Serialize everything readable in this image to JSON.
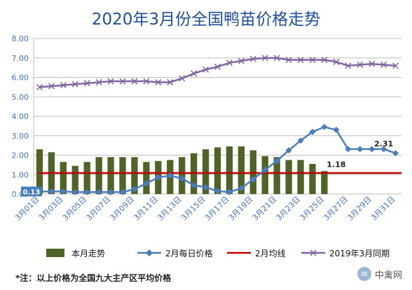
{
  "title": "2020年3月份全国鸭苗价格走势",
  "footnote": "*注：以上价格为全国九大主产区平均价格",
  "watermark": {
    "text": "中禽网",
    "icon": "wechat-icon"
  },
  "colors": {
    "bars": "#4f6228",
    "daily": "#4a7ebb",
    "avg": "#c00000",
    "last_year": "#8064a2",
    "axis_text": "#4472c4",
    "grid": "#bfbfbf"
  },
  "legend": [
    {
      "label": "本月走势",
      "symbol": "bar",
      "color": "#4f6228"
    },
    {
      "label": "2月每日价格",
      "symbol": "line-diamond",
      "color": "#4a7ebb"
    },
    {
      "label": "2月均线",
      "symbol": "line",
      "color": "#c00000"
    },
    {
      "label": "2019年3月同期",
      "symbol": "line-x",
      "color": "#8064a2"
    }
  ],
  "chart_data": {
    "type": "bar+line",
    "title": "2020年3月份全国鸭苗价格走势",
    "ylim": [
      0,
      8
    ],
    "yticks": [
      "0.00",
      "1.00",
      "2.00",
      "3.00",
      "4.00",
      "5.00",
      "6.00",
      "7.00",
      "8.00"
    ],
    "grid": true,
    "legend_position": "bottom",
    "x_categories": [
      "3月01日",
      "3月02日",
      "3月03日",
      "3月04日",
      "3月05日",
      "3月06日",
      "3月07日",
      "3月08日",
      "3月09日",
      "3月10日",
      "3月11日",
      "3月12日",
      "3月13日",
      "3月14日",
      "3月15日",
      "3月16日",
      "3月17日",
      "3月18日",
      "3月19日",
      "3月20日",
      "3月21日",
      "3月22日",
      "3月23日",
      "3月24日",
      "3月25日",
      "3月26日",
      "3月27日",
      "3月28日",
      "3月29日",
      "3月30日",
      "3月31日"
    ],
    "x_tick_labels": [
      "3月01日",
      "3月03日",
      "3月05日",
      "3月07日",
      "3月09日",
      "3月11日",
      "3月13日",
      "3月15日",
      "3月17日",
      "3月19日",
      "3月21日",
      "3月23日",
      "3月25日",
      "3月27日",
      "3月29日",
      "3月31日"
    ],
    "series": [
      {
        "name": "本月走势",
        "type": "bar",
        "values": [
          2.3,
          2.15,
          1.65,
          1.45,
          1.65,
          1.9,
          1.9,
          1.9,
          1.9,
          1.65,
          1.7,
          1.75,
          1.9,
          2.1,
          2.3,
          2.4,
          2.45,
          2.45,
          2.25,
          1.95,
          1.9,
          1.75,
          1.75,
          1.55,
          1.18
        ]
      },
      {
        "name": "2月每日价格",
        "type": "line",
        "values": [
          0.13,
          0.13,
          0.13,
          0.1,
          0.1,
          0.1,
          0.1,
          0.1,
          0.25,
          0.55,
          0.85,
          0.95,
          0.8,
          0.45,
          0.35,
          0.15,
          0.1,
          0.3,
          0.75,
          1.25,
          1.7,
          2.25,
          2.75,
          3.2,
          3.45,
          3.3,
          2.31,
          2.31,
          2.31,
          2.31,
          2.1
        ]
      },
      {
        "name": "2月均线",
        "type": "line",
        "value": 1.08,
        "range": [
          "3月01日",
          "3月31日"
        ]
      },
      {
        "name": "2019年3月同期",
        "type": "line",
        "values": [
          5.5,
          5.55,
          5.6,
          5.65,
          5.7,
          5.75,
          5.8,
          5.8,
          5.8,
          5.8,
          5.75,
          5.75,
          5.95,
          6.2,
          6.4,
          6.55,
          6.75,
          6.85,
          6.95,
          7.0,
          7.0,
          6.9,
          6.9,
          6.9,
          6.9,
          6.8,
          6.6,
          6.65,
          6.7,
          6.65,
          6.6
        ]
      }
    ],
    "data_labels": [
      {
        "series": "2月每日价格",
        "x": "3月01日",
        "text": "0.13"
      },
      {
        "series": "本月走势",
        "x": "3月25日",
        "text": "1.18"
      },
      {
        "series": "2月每日价格",
        "x": "3月30日",
        "text": "2.31"
      }
    ]
  }
}
